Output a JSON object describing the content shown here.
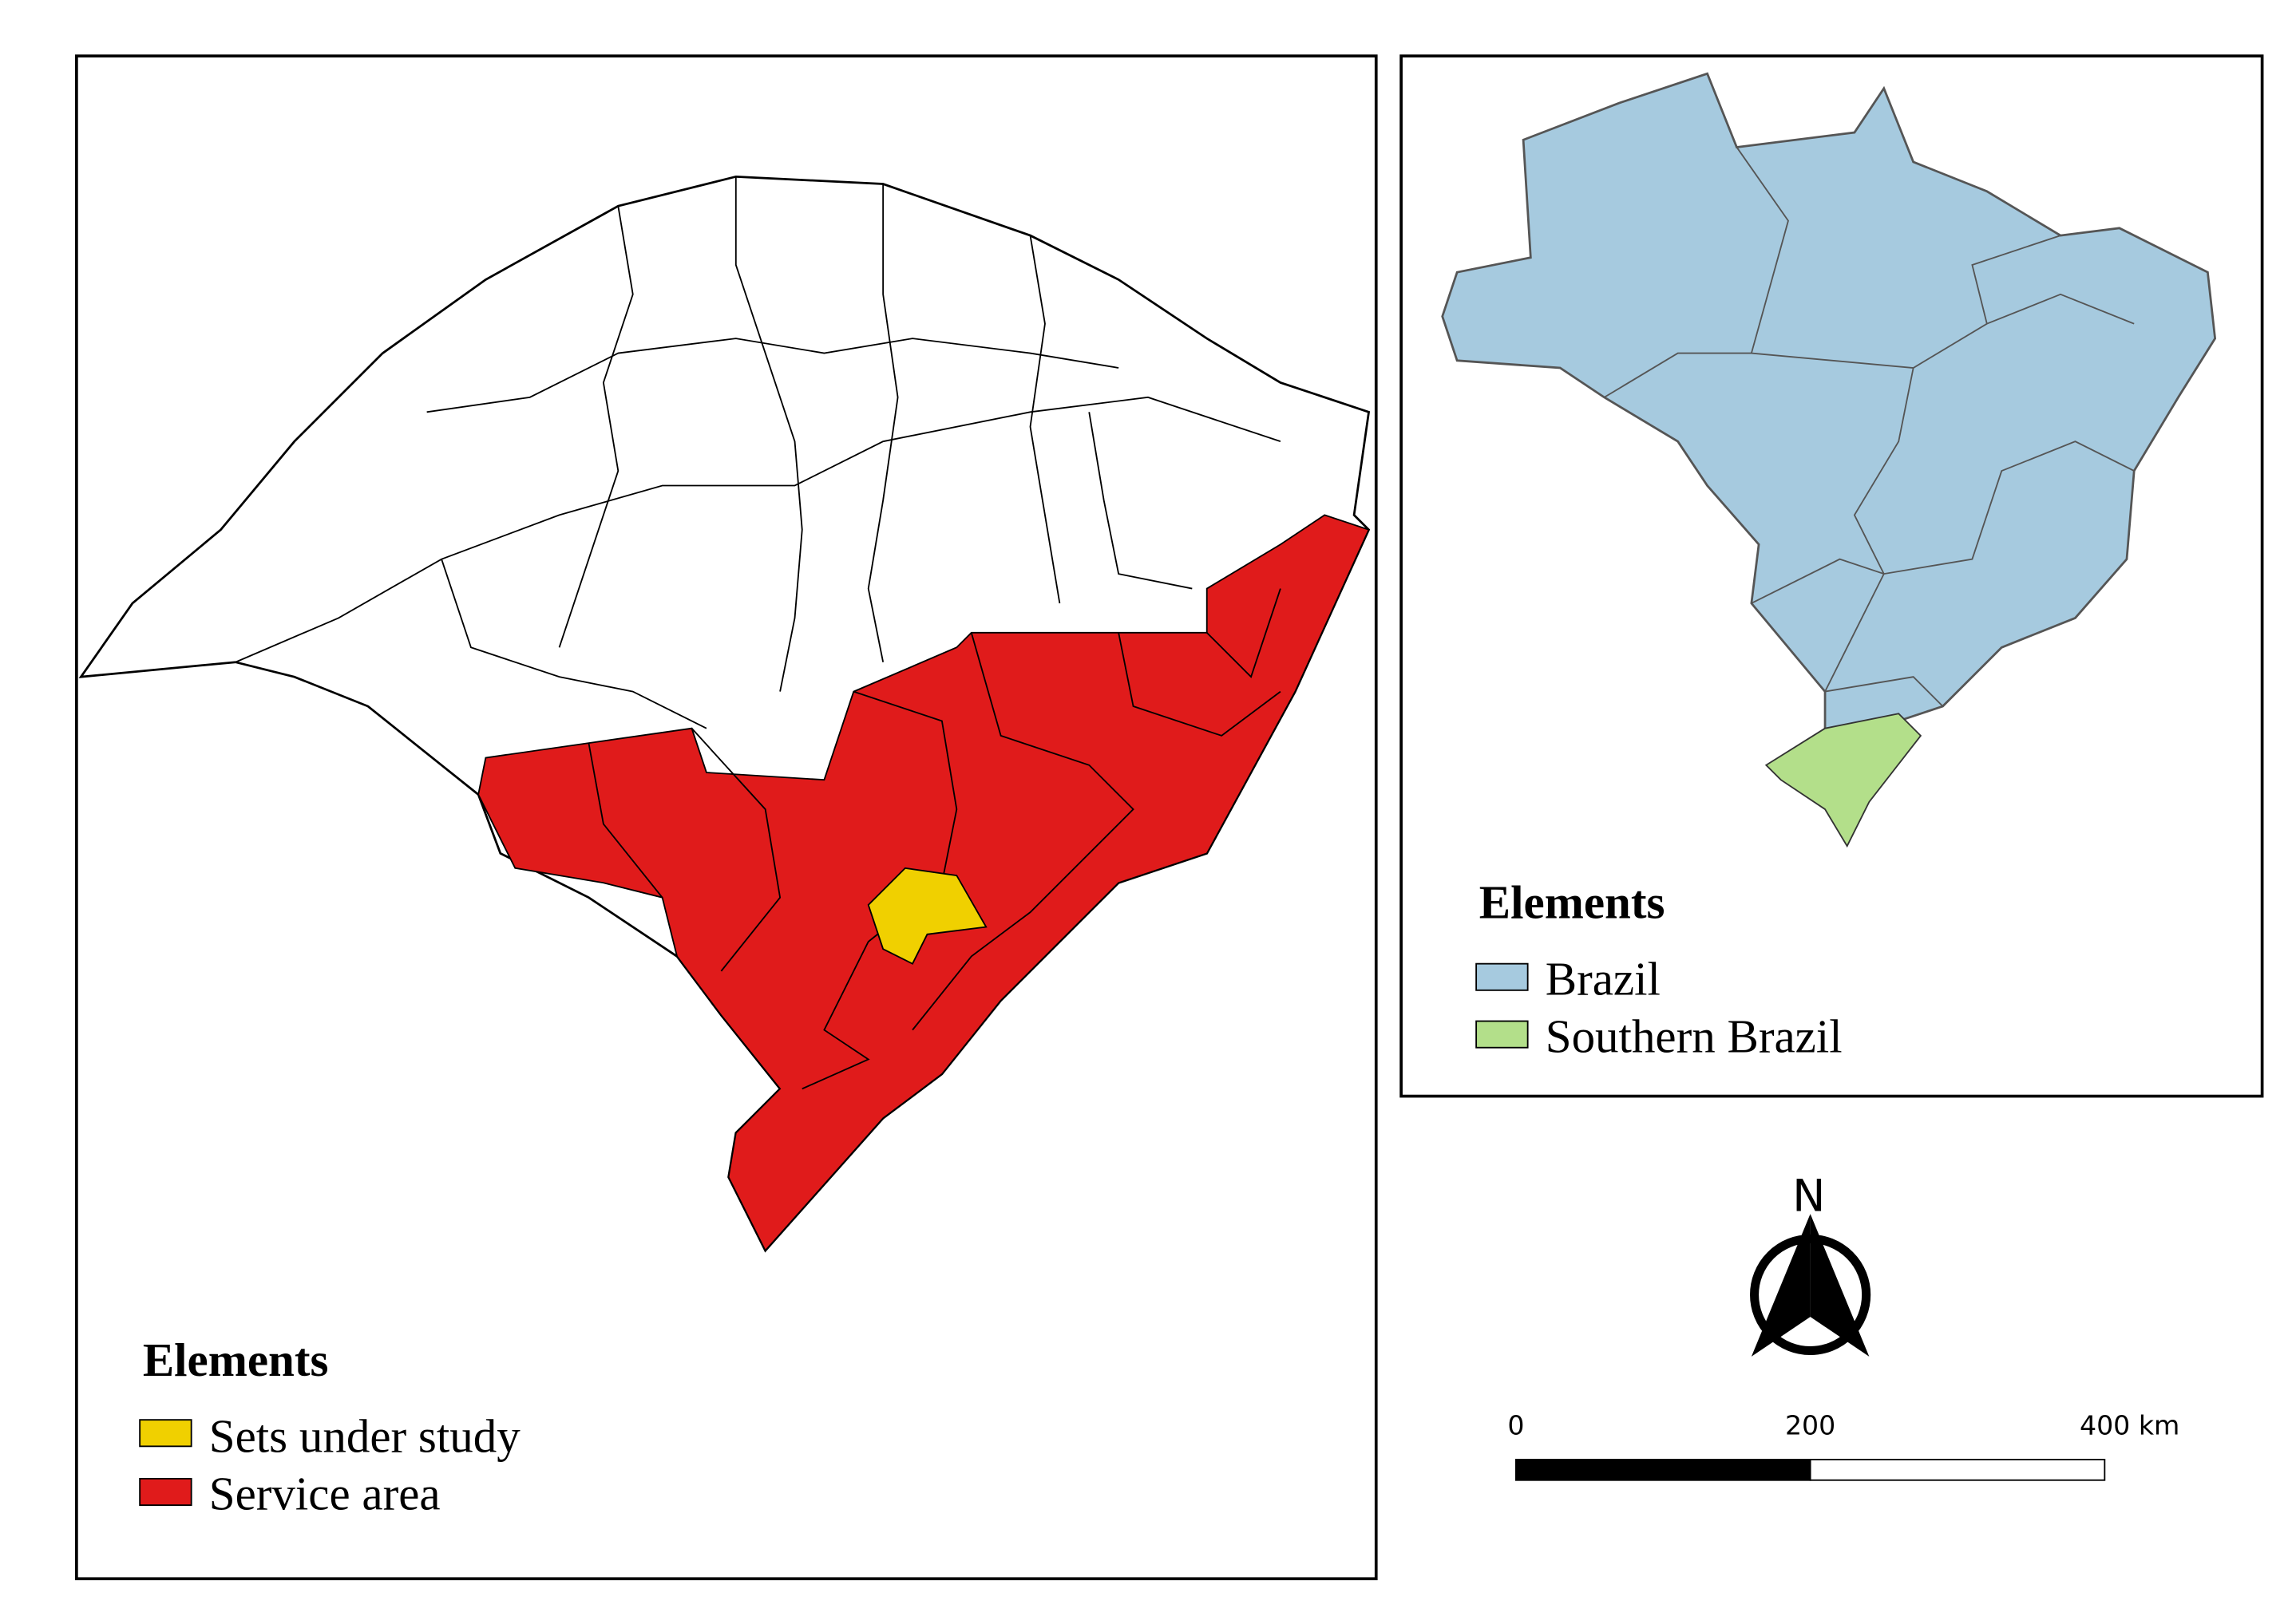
{
  "main_map": {
    "legend": {
      "title": "Elements",
      "items": [
        "Sets under study",
        "Service area"
      ]
    }
  },
  "inset_map": {
    "legend": {
      "title": "Elements",
      "items": [
        "Brazil",
        "Southern Brazil"
      ]
    }
  },
  "north_arrow": {
    "label": "N"
  },
  "scale_bar": {
    "labels": [
      "0",
      "200",
      "400 km"
    ]
  }
}
